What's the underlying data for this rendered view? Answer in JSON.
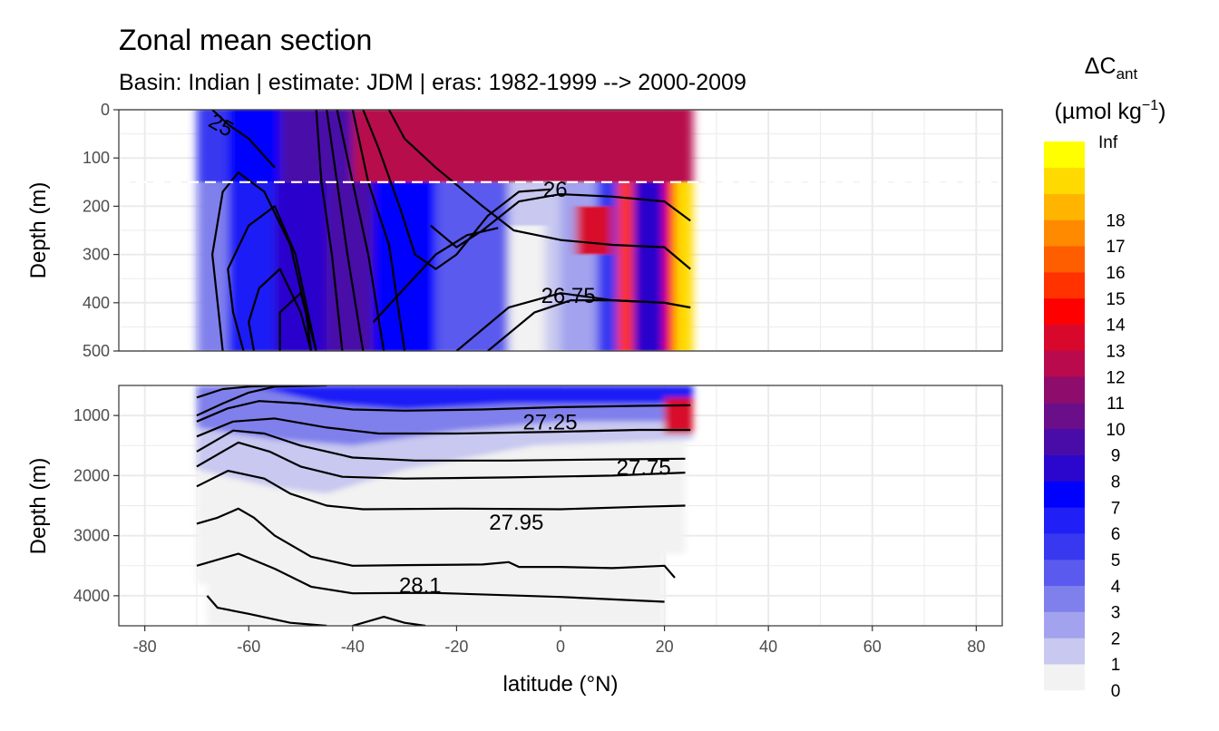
{
  "title": "Zonal mean section",
  "subtitle": "Basin: Indian | estimate: JDM  | eras: 1982-1999 --> 2000-2009",
  "legend": {
    "title_symbol": "ΔC",
    "title_subscript": "ant",
    "title_unit_main": "(µmol kg",
    "title_unit_exp": "−1",
    "title_unit_close": ")"
  },
  "chart_data": {
    "type": "heatmap",
    "description_type": "filled contour section with density isolines",
    "xlabel": "latitude (°N)",
    "ylabel": "Depth (m)",
    "xlim": [
      -85,
      85
    ],
    "x_ticks": [
      -80,
      -60,
      -40,
      -20,
      0,
      20,
      40,
      60,
      80
    ],
    "x_tick_labels": [
      "-80",
      "-60",
      "-40",
      "-20",
      "0",
      "20",
      "40",
      "60",
      "80"
    ],
    "data_lat_range": [
      -70,
      25
    ],
    "mixed_layer_reference_depth": 150,
    "panels": [
      {
        "name": "upper",
        "ylim": [
          0,
          500
        ],
        "y_ticks": [
          0,
          100,
          200,
          300,
          400,
          500
        ],
        "y_tick_labels": [
          "0",
          "100",
          "200",
          "300",
          "400",
          "500"
        ],
        "contour_labels": [
          {
            "text": "25",
            "lat": -66,
            "depth": 45
          },
          {
            "text": "26",
            "lat": -1,
            "depth": 180
          },
          {
            "text": "26.75",
            "lat": 1.5,
            "depth": 400
          }
        ]
      },
      {
        "name": "lower",
        "ylim": [
          500,
          4500
        ],
        "y_ticks": [
          1000,
          2000,
          3000,
          4000
        ],
        "y_tick_labels": [
          "1000",
          "2000",
          "3000",
          "4000"
        ],
        "contour_labels": [
          {
            "text": "27.25",
            "lat": -2,
            "depth": 1230
          },
          {
            "text": "27.75",
            "lat": 16,
            "depth": 1990
          },
          {
            "text": "27.95",
            "lat": -8.5,
            "depth": 2900
          },
          {
            "text": "28.1",
            "lat": -27,
            "depth": 3950
          }
        ]
      }
    ],
    "legend_bins": [
      "0",
      "1",
      "2",
      "3",
      "4",
      "5",
      "6",
      "7",
      "8",
      "9",
      "10",
      "11",
      "12",
      "13",
      "14",
      "15",
      "16",
      "17",
      "18",
      "Inf"
    ],
    "legend_colors": [
      "#f2f2f2",
      "#c8c8f0",
      "#a2a2ee",
      "#8080ec",
      "#5a5aee",
      "#3838f0",
      "#1f1ff6",
      "#0000ff",
      "#2b06cc",
      "#4a0ca8",
      "#6a0e8a",
      "#8e0c6c",
      "#b80a4c",
      "#d8082c",
      "#ff0000",
      "#ff3200",
      "#ff5e00",
      "#ff8a00",
      "#ffb400",
      "#ffda00",
      "#ffff00"
    ],
    "field_regions_upper": [
      {
        "lat0": -70,
        "lat1": -64,
        "value": 3.5
      },
      {
        "lat0": -64,
        "lat1": -55,
        "value": 6.5
      },
      {
        "lat0": -55,
        "lat1": -45,
        "value": 8.5
      },
      {
        "lat0": -45,
        "lat1": -36,
        "value": 9.5
      },
      {
        "lat0": -36,
        "lat1": -24,
        "value": 7.5
      },
      {
        "lat0": -24,
        "lat1": -10,
        "value": 4.5
      },
      {
        "lat0": -10,
        "lat1": 0,
        "value": 1.5
      },
      {
        "lat0": 0,
        "lat1": 7,
        "value": 2.5
      },
      {
        "lat0": 7,
        "lat1": 11,
        "value": 5.5
      },
      {
        "lat0": 11,
        "lat1": 14,
        "value": 15.5
      },
      {
        "lat0": 14,
        "lat1": 20,
        "value": 8.5
      },
      {
        "lat0": 20,
        "lat1": 22,
        "value": 14.5
      },
      {
        "lat0": 22,
        "lat1": 25.5,
        "value": 18.5
      }
    ],
    "field_surface_layer": [
      {
        "lat0": -70,
        "lat1": -64,
        "value": 5.5
      },
      {
        "lat0": -64,
        "lat1": -54,
        "value": 7.5
      },
      {
        "lat0": -54,
        "lat1": -40,
        "value": 9.5
      },
      {
        "lat0": -40,
        "lat1": 25.5,
        "value": 12.5
      }
    ],
    "isopycnals_upper_depths": [
      {
        "sigma": "25",
        "depth_at": [
          [
            -67,
            0
          ],
          [
            -64,
            30
          ],
          [
            -60,
            60
          ],
          [
            -55,
            120
          ]
        ]
      },
      {
        "sigma": "26",
        "depth_at": [
          [
            -25,
            240
          ],
          [
            -20,
            285
          ],
          [
            -15,
            250
          ],
          [
            -8,
            190
          ],
          [
            0,
            175
          ],
          [
            10,
            180
          ],
          [
            20,
            190
          ],
          [
            25,
            230
          ]
        ]
      },
      {
        "sigma": "26.75",
        "depth_at": [
          [
            -20,
            500
          ],
          [
            -10,
            410
          ],
          [
            0,
            380
          ],
          [
            10,
            395
          ],
          [
            20,
            400
          ],
          [
            25,
            410
          ]
        ]
      }
    ]
  }
}
